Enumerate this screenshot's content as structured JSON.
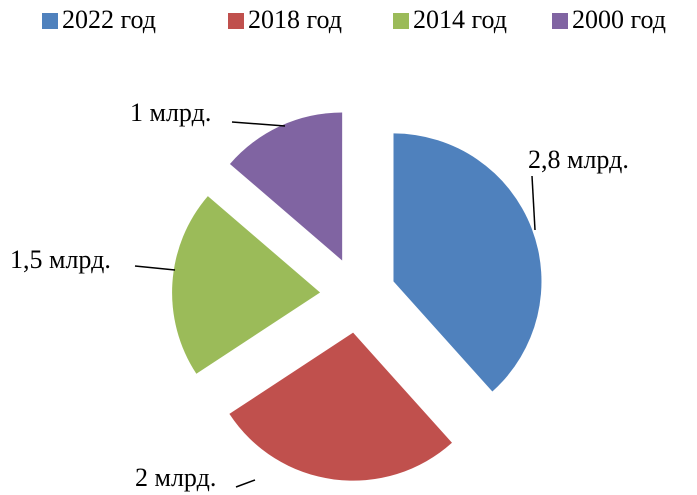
{
  "chart_data": {
    "type": "pie",
    "categories": [
      "2022 год",
      "2018 год",
      "2014 год",
      "2000 год"
    ],
    "values": [
      2.8,
      2,
      1.5,
      1
    ],
    "value_labels": [
      "2,8 млрд.",
      "2 млрд.",
      "1,5 млрд.",
      "1 млрд."
    ],
    "colors": [
      "#4f81bd",
      "#c0504d",
      "#9bbb59",
      "#8064a2"
    ],
    "legend": "top"
  }
}
